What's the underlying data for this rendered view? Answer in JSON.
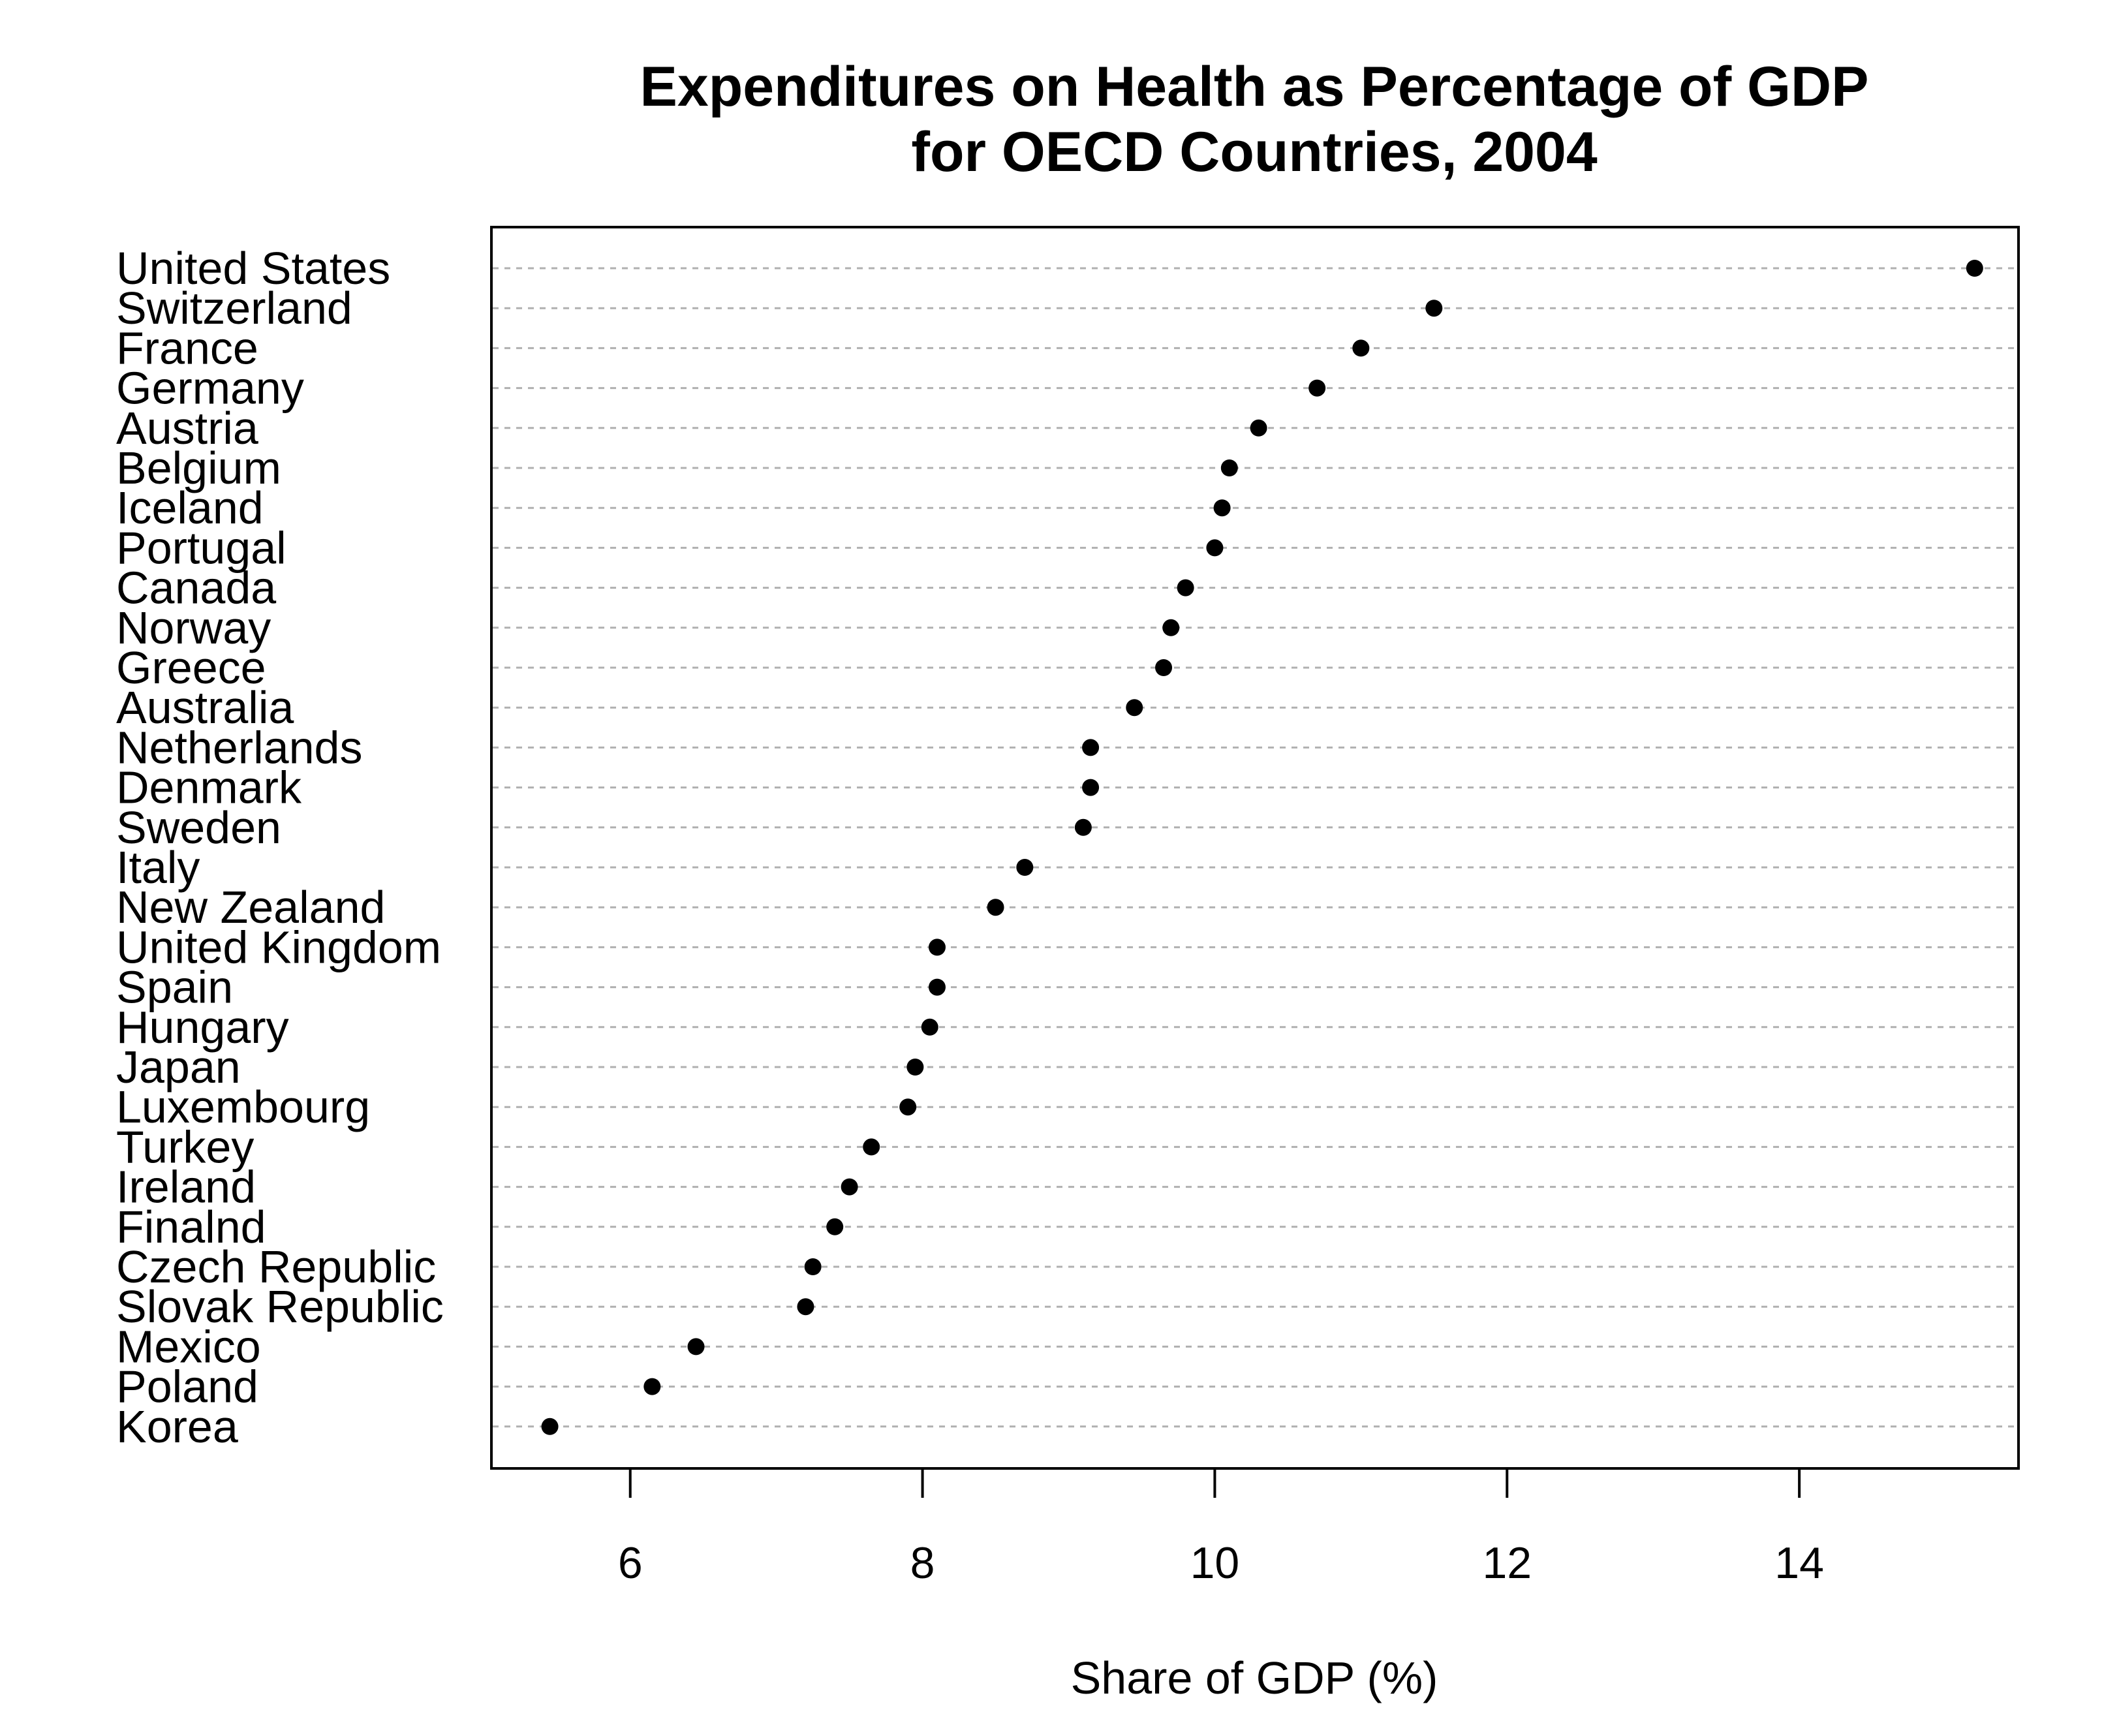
{
  "chart_data": {
    "type": "scatter",
    "subtype": "dot-plot",
    "title_lines": [
      "Expenditures on Health as Percentage of GDP",
      "for OECD Countries, 2004"
    ],
    "xlabel": "Share of GDP (%)",
    "ylabel": "",
    "xlim": [
      5.05,
      15.5
    ],
    "xticks": [
      6,
      8,
      10,
      12,
      14
    ],
    "grid": "horizontal dotted lines per country",
    "marker_color": "#000000",
    "grid_color": "#b0b0b0",
    "points": [
      {
        "label": "United States",
        "value": 15.2
      },
      {
        "label": "Switzerland",
        "value": 11.5
      },
      {
        "label": "France",
        "value": 11.0
      },
      {
        "label": "Germany",
        "value": 10.7
      },
      {
        "label": "Austria",
        "value": 10.3
      },
      {
        "label": "Belgium",
        "value": 10.1
      },
      {
        "label": "Iceland",
        "value": 10.05
      },
      {
        "label": "Portugal",
        "value": 10.0
      },
      {
        "label": "Canada",
        "value": 9.8
      },
      {
        "label": "Norway",
        "value": 9.7
      },
      {
        "label": "Greece",
        "value": 9.65
      },
      {
        "label": "Australia",
        "value": 9.45
      },
      {
        "label": "Netherlands",
        "value": 9.15
      },
      {
        "label": "Denmark",
        "value": 9.15
      },
      {
        "label": "Sweden",
        "value": 9.1
      },
      {
        "label": "Italy",
        "value": 8.7
      },
      {
        "label": "New Zealand",
        "value": 8.5
      },
      {
        "label": "United Kingdom",
        "value": 8.1
      },
      {
        "label": "Spain",
        "value": 8.1
      },
      {
        "label": "Hungary",
        "value": 8.05
      },
      {
        "label": "Japan",
        "value": 7.95
      },
      {
        "label": "Luxembourg",
        "value": 7.9
      },
      {
        "label": "Turkey",
        "value": 7.65
      },
      {
        "label": "Ireland",
        "value": 7.5
      },
      {
        "label": "Finalnd",
        "value": 7.4
      },
      {
        "label": "Czech Republic",
        "value": 7.25
      },
      {
        "label": "Slovak Republic",
        "value": 7.2
      },
      {
        "label": "Mexico",
        "value": 6.45
      },
      {
        "label": "Poland",
        "value": 6.15
      },
      {
        "label": "Korea",
        "value": 5.45
      }
    ]
  }
}
